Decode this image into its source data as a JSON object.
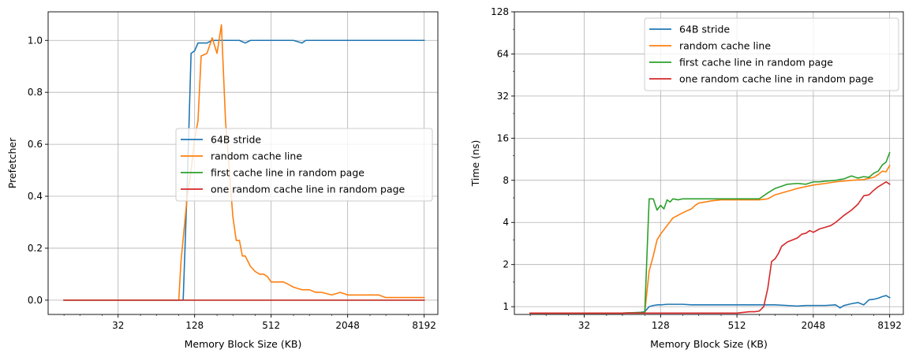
{
  "chart_data": [
    {
      "type": "line",
      "title": "",
      "xlabel": "Memory Block Size (KB)",
      "ylabel": "Prefetcher",
      "xscale": "log2",
      "yscale": "linear",
      "xlim": [
        9,
        10500
      ],
      "ylim": [
        -0.055,
        1.11
      ],
      "xticks": [
        32,
        128,
        512,
        2048,
        8192
      ],
      "xtick_labels": [
        "32",
        "128",
        "512",
        "2048",
        "8192"
      ],
      "yticks": [
        0.0,
        0.2,
        0.4,
        0.6,
        0.8,
        1.0
      ],
      "ytick_labels": [
        "0.0",
        "0.2",
        "0.4",
        "0.6",
        "0.8",
        "1.0"
      ],
      "grid": true,
      "legend": "center-right",
      "series": [
        {
          "name": "64B stride",
          "color": "#1f77b4",
          "x": [
            12,
            16,
            20,
            24,
            32,
            40,
            48,
            56,
            64,
            72,
            80,
            88,
            96,
            104,
            112,
            120,
            128,
            136,
            144,
            160,
            176,
            192,
            208,
            224,
            240,
            256,
            288,
            320,
            352,
            384,
            416,
            448,
            512,
            640,
            768,
            896,
            960,
            1024,
            2048,
            4096,
            8192
          ],
          "y": [
            0,
            0,
            0,
            0,
            0,
            0,
            0,
            0,
            0,
            0,
            0,
            0,
            0,
            0,
            0.45,
            0.95,
            0.96,
            0.99,
            0.99,
            0.99,
            1.0,
            1.0,
            1.0,
            1.0,
            1.0,
            1.0,
            1.0,
            0.99,
            1.0,
            1.0,
            1.0,
            1.0,
            1.0,
            1.0,
            1.0,
            0.99,
            1.0,
            1.0,
            1.0,
            1.0,
            1.0
          ]
        },
        {
          "name": "random cache line",
          "color": "#ff7f0e",
          "x": [
            12,
            16,
            32,
            64,
            96,
            100,
            112,
            120,
            128,
            136,
            144,
            160,
            176,
            192,
            208,
            224,
            240,
            256,
            272,
            288,
            304,
            320,
            352,
            384,
            416,
            448,
            480,
            512,
            576,
            640,
            704,
            768,
            896,
            1024,
            1152,
            1280,
            1536,
            1792,
            2048,
            2304,
            2560,
            3072,
            3584,
            4096,
            5120,
            6144,
            8192
          ],
          "y": [
            0,
            0,
            0,
            0,
            0,
            0.15,
            0.4,
            0.5,
            0.62,
            0.69,
            0.94,
            0.95,
            1.01,
            0.95,
            1.06,
            0.69,
            0.5,
            0.32,
            0.23,
            0.23,
            0.17,
            0.17,
            0.13,
            0.11,
            0.1,
            0.1,
            0.09,
            0.07,
            0.07,
            0.07,
            0.06,
            0.05,
            0.04,
            0.04,
            0.03,
            0.03,
            0.02,
            0.03,
            0.02,
            0.02,
            0.02,
            0.02,
            0.02,
            0.01,
            0.01,
            0.01,
            0.01
          ]
        },
        {
          "name": "first cache line in random page",
          "color": "#2ca02c",
          "x": [
            12,
            8192
          ],
          "y": [
            0,
            0
          ]
        },
        {
          "name": "one random cache line in random page",
          "color": "#d62728",
          "x": [
            12,
            8192
          ],
          "y": [
            0,
            0
          ]
        }
      ]
    },
    {
      "type": "line",
      "title": "",
      "xlabel": "Memory Block Size (KB)",
      "ylabel": "Time (ns)",
      "xscale": "log2",
      "yscale": "log2",
      "xlim": [
        9,
        10500
      ],
      "ylim": [
        0.88,
        128
      ],
      "xticks": [
        32,
        128,
        512,
        2048,
        8192
      ],
      "xtick_labels": [
        "32",
        "128",
        "512",
        "2048",
        "8192"
      ],
      "yticks": [
        1,
        2,
        4,
        8,
        16,
        32,
        64,
        128
      ],
      "ytick_labels": [
        "1",
        "2",
        "4",
        "8",
        "16",
        "32",
        "64",
        "128"
      ],
      "grid": true,
      "legend": "upper-right",
      "series": [
        {
          "name": "64B stride",
          "color": "#1f77b4",
          "x": [
            12,
            16,
            24,
            32,
            48,
            64,
            88,
            96,
            104,
            112,
            120,
            128,
            144,
            160,
            192,
            224,
            256,
            384,
            512,
            640,
            768,
            896,
            1024,
            1280,
            1536,
            1792,
            2048,
            2560,
            3072,
            3328,
            3584,
            4096,
            4608,
            5120,
            5632,
            6144,
            6656,
            7168,
            7680,
            8192
          ],
          "y": [
            0.9,
            0.9,
            0.9,
            0.9,
            0.9,
            0.9,
            0.91,
            0.92,
            1.0,
            1.02,
            1.03,
            1.03,
            1.04,
            1.04,
            1.04,
            1.03,
            1.03,
            1.03,
            1.03,
            1.03,
            1.03,
            1.03,
            1.03,
            1.02,
            1.01,
            1.02,
            1.02,
            1.02,
            1.03,
            0.98,
            1.02,
            1.05,
            1.07,
            1.03,
            1.12,
            1.13,
            1.15,
            1.18,
            1.2,
            1.16
          ]
        },
        {
          "name": "random cache line",
          "color": "#ff7f0e",
          "x": [
            12,
            32,
            64,
            96,
            104,
            112,
            120,
            128,
            144,
            160,
            192,
            224,
            240,
            256,
            288,
            320,
            384,
            448,
            512,
            640,
            768,
            896,
            1024,
            1536,
            2048,
            2560,
            3072,
            4096,
            5120,
            6144,
            6656,
            7168,
            7680,
            8192
          ],
          "y": [
            0.9,
            0.9,
            0.9,
            0.91,
            1.8,
            2.3,
            3.0,
            3.3,
            3.8,
            4.3,
            4.7,
            5.0,
            5.3,
            5.5,
            5.6,
            5.7,
            5.8,
            5.8,
            5.8,
            5.8,
            5.8,
            5.9,
            6.3,
            7.0,
            7.4,
            7.6,
            7.8,
            8.0,
            8.1,
            8.4,
            8.8,
            9.3,
            9.2,
            10.2
          ]
        },
        {
          "name": "first cache line in random page",
          "color": "#2ca02c",
          "x": [
            12,
            32,
            64,
            96,
            104,
            112,
            120,
            128,
            136,
            144,
            152,
            160,
            176,
            192,
            208,
            224,
            256,
            320,
            384,
            512,
            640,
            768,
            896,
            1024,
            1280,
            1536,
            1792,
            2048,
            2304,
            2560,
            3072,
            3584,
            4096,
            4608,
            5120,
            5632,
            6144,
            6656,
            7168,
            7680,
            8192
          ],
          "y": [
            0.9,
            0.9,
            0.9,
            0.91,
            5.9,
            5.9,
            4.9,
            5.3,
            5.0,
            5.8,
            5.6,
            5.9,
            5.8,
            5.9,
            5.9,
            5.9,
            5.9,
            5.9,
            5.9,
            5.9,
            5.9,
            5.9,
            6.5,
            7.0,
            7.5,
            7.6,
            7.5,
            7.8,
            7.8,
            7.9,
            8.0,
            8.2,
            8.6,
            8.3,
            8.5,
            8.4,
            9.0,
            9.3,
            10.3,
            10.8,
            12.6
          ]
        },
        {
          "name": "one random cache line in random page",
          "color": "#d62728",
          "x": [
            12,
            32,
            64,
            96,
            128,
            256,
            512,
            640,
            704,
            768,
            832,
            896,
            960,
            1024,
            1088,
            1152,
            1280,
            1408,
            1536,
            1664,
            1792,
            1920,
            2048,
            2304,
            2560,
            2816,
            3072,
            3584,
            4096,
            4608,
            5120,
            5632,
            6144,
            6656,
            7168,
            7680,
            8192
          ],
          "y": [
            0.9,
            0.9,
            0.9,
            0.9,
            0.9,
            0.9,
            0.9,
            0.92,
            0.92,
            0.93,
            1.0,
            1.35,
            2.1,
            2.2,
            2.4,
            2.7,
            2.9,
            3.0,
            3.1,
            3.3,
            3.35,
            3.5,
            3.4,
            3.6,
            3.7,
            3.8,
            4.0,
            4.5,
            4.9,
            5.4,
            6.2,
            6.3,
            6.8,
            7.2,
            7.5,
            7.8,
            7.5
          ]
        }
      ]
    }
  ]
}
